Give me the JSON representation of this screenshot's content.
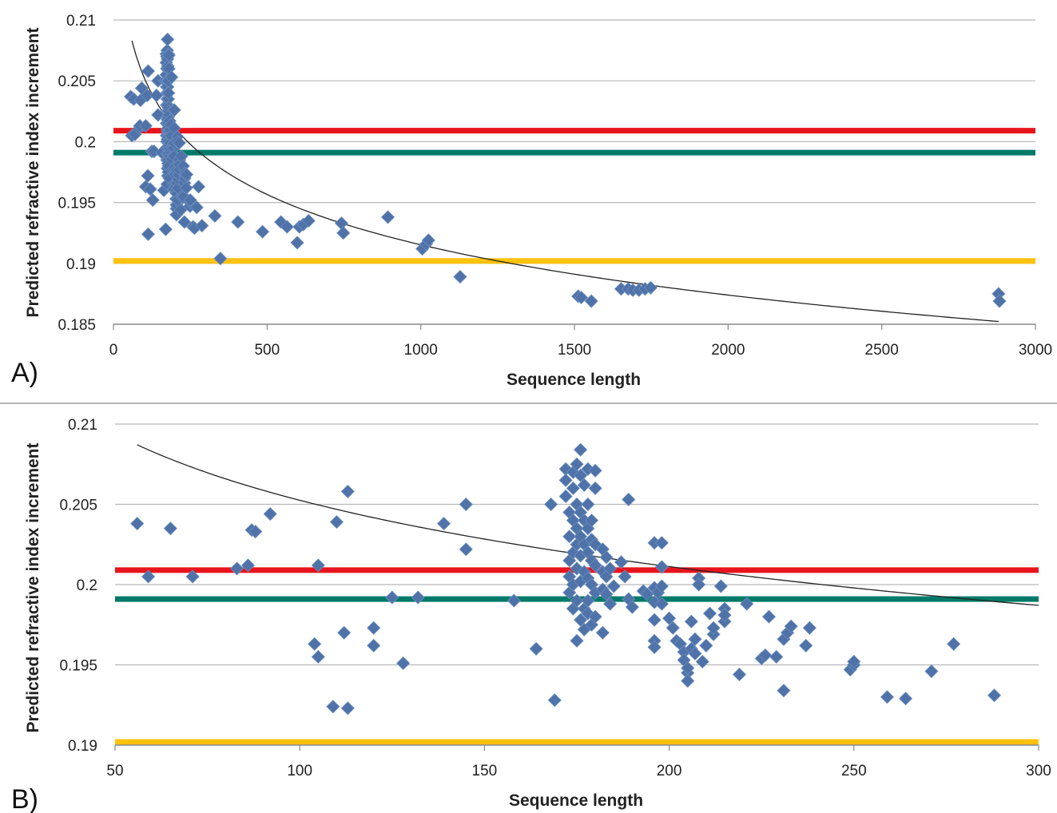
{
  "chart_data": [
    {
      "type": "scatter",
      "panel_label": "A)",
      "xlabel": "Sequence length",
      "ylabel": "Predicted refractive index increment",
      "xlim": [
        0,
        3000
      ],
      "ylim": [
        0.185,
        0.21
      ],
      "xticks": [
        0,
        500,
        1000,
        1500,
        2000,
        2500,
        3000
      ],
      "xtick_labels": [
        "0",
        "500",
        "1000",
        "1500",
        "2000",
        "2500",
        "3000"
      ],
      "yticks": [
        0.185,
        0.19,
        0.195,
        0.2,
        0.205,
        0.21
      ],
      "ytick_labels": [
        "0.185",
        "0.19",
        "0.195",
        "0.2",
        "0.205",
        "0.21"
      ],
      "grid": "horizontal",
      "marker_color": "#4f73a8",
      "reference_lines": [
        {
          "y": 0.2009,
          "color": "#e8141d"
        },
        {
          "y": 0.1991,
          "color": "#007a68"
        },
        {
          "y": 0.1902,
          "color": "#ffc20e"
        }
      ],
      "trendline": {
        "type": "log",
        "x_range": [
          60,
          2880
        ],
        "a": 0.2327,
        "b": -0.00596,
        "color": "#222222"
      },
      "points": [
        [
          56,
          0.2037
        ],
        [
          60,
          0.2005
        ],
        [
          66,
          0.2035
        ],
        [
          70,
          0.2006
        ],
        [
          84,
          0.2011
        ],
        [
          86,
          0.2013
        ],
        [
          88,
          0.2034
        ],
        [
          92,
          0.2044
        ],
        [
          105,
          0.2013
        ],
        [
          105,
          0.1963
        ],
        [
          110,
          0.2038
        ],
        [
          113,
          0.1924
        ],
        [
          113,
          0.2058
        ],
        [
          112,
          0.1972
        ],
        [
          120,
          0.1961
        ],
        [
          125,
          0.1992
        ],
        [
          128,
          0.1952
        ],
        [
          132,
          0.1992
        ],
        [
          140,
          0.2038
        ],
        [
          145,
          0.205
        ],
        [
          145,
          0.2022
        ],
        [
          158,
          0.1991
        ],
        [
          164,
          0.196
        ],
        [
          168,
          0.205
        ],
        [
          170,
          0.1928
        ],
        [
          172,
          0.2072
        ],
        [
          172,
          0.2065
        ],
        [
          172,
          0.2055
        ],
        [
          173,
          0.2045
        ],
        [
          173,
          0.203
        ],
        [
          173,
          0.2015
        ],
        [
          173,
          0.2005
        ],
        [
          173,
          0.1995
        ],
        [
          174,
          0.207
        ],
        [
          174,
          0.206
        ],
        [
          174,
          0.204
        ],
        [
          174,
          0.202
        ],
        [
          174,
          0.2
        ],
        [
          174,
          0.1985
        ],
        [
          175,
          0.2075
        ],
        [
          175,
          0.205
        ],
        [
          175,
          0.2035
        ],
        [
          175,
          0.2025
        ],
        [
          175,
          0.201
        ],
        [
          175,
          0.199
        ],
        [
          175,
          0.1965
        ],
        [
          176,
          0.2084
        ],
        [
          176,
          0.2068
        ],
        [
          176,
          0.2045
        ],
        [
          176,
          0.203
        ],
        [
          176,
          0.2018
        ],
        [
          176,
          0.2002
        ],
        [
          176,
          0.1978
        ],
        [
          177,
          0.2062
        ],
        [
          177,
          0.204
        ],
        [
          177,
          0.2025
        ],
        [
          177,
          0.2008
        ],
        [
          177,
          0.1985
        ],
        [
          177,
          0.1972
        ],
        [
          178,
          0.2072
        ],
        [
          178,
          0.205
        ],
        [
          178,
          0.2035
        ],
        [
          178,
          0.202
        ],
        [
          178,
          0.2004
        ],
        [
          178,
          0.199
        ],
        [
          178,
          0.1982
        ],
        [
          179,
          0.204
        ],
        [
          179,
          0.2028
        ],
        [
          179,
          0.2015
        ],
        [
          179,
          0.2
        ],
        [
          179,
          0.1975
        ],
        [
          180,
          0.2071
        ],
        [
          180,
          0.206
        ],
        [
          180,
          0.2025
        ],
        [
          180,
          0.2012
        ],
        [
          180,
          0.1995
        ],
        [
          180,
          0.198
        ],
        [
          182,
          0.2022
        ],
        [
          182,
          0.2008
        ],
        [
          182,
          0.1997
        ],
        [
          182,
          0.197
        ],
        [
          183,
          0.2017
        ],
        [
          183,
          0.2005
        ],
        [
          183,
          0.1994
        ],
        [
          184,
          0.201
        ],
        [
          184,
          0.1988
        ],
        [
          185,
          0.1999
        ],
        [
          187,
          0.2014
        ],
        [
          188,
          0.2005
        ],
        [
          189,
          0.2053
        ],
        [
          189,
          0.1991
        ],
        [
          190,
          0.1986
        ],
        [
          193,
          0.1996
        ],
        [
          194,
          0.1994
        ],
        [
          196,
          0.2026
        ],
        [
          196,
          0.1998
        ],
        [
          196,
          0.1989
        ],
        [
          196,
          0.1978
        ],
        [
          196,
          0.1965
        ],
        [
          196,
          0.1961
        ],
        [
          197,
          0.1995
        ],
        [
          198,
          0.2026
        ],
        [
          198,
          0.2011
        ],
        [
          198,
          0.1999
        ],
        [
          198,
          0.1988
        ],
        [
          200,
          0.1979
        ],
        [
          201,
          0.1973
        ],
        [
          202,
          0.1965
        ],
        [
          203,
          0.1963
        ],
        [
          204,
          0.1958
        ],
        [
          204,
          0.1953
        ],
        [
          205,
          0.1945
        ],
        [
          205,
          0.194
        ],
        [
          205,
          0.1948
        ],
        [
          206,
          0.196
        ],
        [
          206,
          0.1977
        ],
        [
          207,
          0.1966
        ],
        [
          207,
          0.1957
        ],
        [
          208,
          0.2004
        ],
        [
          208,
          0.2
        ],
        [
          209,
          0.1952
        ],
        [
          210,
          0.1962
        ],
        [
          211,
          0.1982
        ],
        [
          212,
          0.1969
        ],
        [
          212,
          0.1973
        ],
        [
          214,
          0.1999
        ],
        [
          215,
          0.1985
        ],
        [
          215,
          0.1977
        ],
        [
          215,
          0.1981
        ],
        [
          219,
          0.1944
        ],
        [
          221,
          0.1988
        ],
        [
          225,
          0.1954
        ],
        [
          226,
          0.1956
        ],
        [
          227,
          0.198
        ],
        [
          229,
          0.1955
        ],
        [
          231,
          0.1934
        ],
        [
          231,
          0.1966
        ],
        [
          232,
          0.197
        ],
        [
          233,
          0.1974
        ],
        [
          237,
          0.1962
        ],
        [
          238,
          0.1973
        ],
        [
          249,
          0.1947
        ],
        [
          250,
          0.195
        ],
        [
          250,
          0.1952
        ],
        [
          259,
          0.193
        ],
        [
          264,
          0.1929
        ],
        [
          271,
          0.1946
        ],
        [
          277,
          0.1963
        ],
        [
          288,
          0.1931
        ],
        [
          348,
          0.1904
        ],
        [
          330,
          0.1939
        ],
        [
          405,
          0.1934
        ],
        [
          485,
          0.1926
        ],
        [
          545,
          0.1934
        ],
        [
          565,
          0.193
        ],
        [
          598,
          0.1917
        ],
        [
          605,
          0.193
        ],
        [
          618,
          0.1932
        ],
        [
          635,
          0.1935
        ],
        [
          742,
          0.1933
        ],
        [
          748,
          0.1925
        ],
        [
          893,
          0.1938
        ],
        [
          1005,
          0.1912
        ],
        [
          1018,
          0.1916
        ],
        [
          1025,
          0.1919
        ],
        [
          1128,
          0.1889
        ],
        [
          1512,
          0.1873
        ],
        [
          1522,
          0.1872
        ],
        [
          1555,
          0.1869
        ],
        [
          1652,
          0.1879
        ],
        [
          1675,
          0.1879
        ],
        [
          1690,
          0.1878
        ],
        [
          1710,
          0.1878
        ],
        [
          1730,
          0.1879
        ],
        [
          1748,
          0.188
        ],
        [
          2880,
          0.1875
        ],
        [
          2883,
          0.1869
        ]
      ]
    },
    {
      "type": "scatter",
      "panel_label": "B)",
      "xlabel": "Sequence length",
      "ylabel": "Predicted refractive index increment",
      "xlim": [
        50,
        300
      ],
      "ylim": [
        0.19,
        0.21
      ],
      "xticks": [
        50,
        100,
        150,
        200,
        250,
        300
      ],
      "xtick_labels": [
        "50",
        "100",
        "150",
        "200",
        "250",
        "300"
      ],
      "yticks": [
        0.19,
        0.195,
        0.2,
        0.205,
        0.21
      ],
      "ytick_labels": [
        "0.19",
        "0.195",
        "0.2",
        "0.205",
        "0.21"
      ],
      "grid": "horizontal",
      "marker_color": "#4f73a8",
      "reference_lines": [
        {
          "y": 0.2009,
          "color": "#e8141d"
        },
        {
          "y": 0.1991,
          "color": "#007a68"
        },
        {
          "y": 0.1902,
          "color": "#ffc20e"
        }
      ],
      "trendline": {
        "type": "log",
        "x_range": [
          56,
          300
        ],
        "a": 0.2327,
        "b": -0.00596,
        "color": "#222222"
      },
      "points": [
        [
          56,
          0.2038
        ],
        [
          59,
          0.2005
        ],
        [
          65,
          0.2035
        ],
        [
          71,
          0.2005
        ],
        [
          83,
          0.201
        ],
        [
          86,
          0.2012
        ],
        [
          87,
          0.2034
        ],
        [
          88,
          0.2033
        ],
        [
          92,
          0.2044
        ],
        [
          104,
          0.1963
        ],
        [
          105,
          0.2012
        ],
        [
          105,
          0.1955
        ],
        [
          109,
          0.1924
        ],
        [
          110,
          0.2039
        ],
        [
          112,
          0.197
        ],
        [
          113,
          0.1923
        ],
        [
          113,
          0.2058
        ],
        [
          120,
          0.1973
        ],
        [
          120,
          0.1962
        ],
        [
          125,
          0.1992
        ],
        [
          128,
          0.1951
        ],
        [
          132,
          0.1992
        ],
        [
          139,
          0.2038
        ],
        [
          145,
          0.205
        ],
        [
          145,
          0.2022
        ],
        [
          158,
          0.199
        ],
        [
          164,
          0.196
        ],
        [
          168,
          0.205
        ],
        [
          169,
          0.1928
        ],
        [
          172,
          0.2072
        ],
        [
          172,
          0.2065
        ],
        [
          172,
          0.2055
        ],
        [
          173,
          0.2045
        ],
        [
          173,
          0.203
        ],
        [
          173,
          0.2015
        ],
        [
          173,
          0.2005
        ],
        [
          173,
          0.1995
        ],
        [
          174,
          0.207
        ],
        [
          174,
          0.206
        ],
        [
          174,
          0.204
        ],
        [
          174,
          0.202
        ],
        [
          174,
          0.2
        ],
        [
          174,
          0.1985
        ],
        [
          175,
          0.2075
        ],
        [
          175,
          0.205
        ],
        [
          175,
          0.2035
        ],
        [
          175,
          0.2025
        ],
        [
          175,
          0.201
        ],
        [
          175,
          0.199
        ],
        [
          175,
          0.1965
        ],
        [
          176,
          0.2084
        ],
        [
          176,
          0.2068
        ],
        [
          176,
          0.2045
        ],
        [
          176,
          0.203
        ],
        [
          176,
          0.2018
        ],
        [
          176,
          0.2002
        ],
        [
          176,
          0.1978
        ],
        [
          177,
          0.2062
        ],
        [
          177,
          0.204
        ],
        [
          177,
          0.2025
        ],
        [
          177,
          0.2008
        ],
        [
          177,
          0.1985
        ],
        [
          177,
          0.1972
        ],
        [
          178,
          0.2072
        ],
        [
          178,
          0.205
        ],
        [
          178,
          0.2035
        ],
        [
          178,
          0.202
        ],
        [
          178,
          0.2004
        ],
        [
          178,
          0.199
        ],
        [
          178,
          0.1982
        ],
        [
          179,
          0.204
        ],
        [
          179,
          0.2028
        ],
        [
          179,
          0.2015
        ],
        [
          179,
          0.2
        ],
        [
          179,
          0.1975
        ],
        [
          180,
          0.2071
        ],
        [
          180,
          0.206
        ],
        [
          180,
          0.2025
        ],
        [
          180,
          0.2012
        ],
        [
          180,
          0.1995
        ],
        [
          180,
          0.198
        ],
        [
          182,
          0.2022
        ],
        [
          182,
          0.2008
        ],
        [
          182,
          0.1997
        ],
        [
          182,
          0.197
        ],
        [
          183,
          0.2017
        ],
        [
          183,
          0.2005
        ],
        [
          183,
          0.1994
        ],
        [
          184,
          0.201
        ],
        [
          184,
          0.1988
        ],
        [
          185,
          0.1999
        ],
        [
          187,
          0.2014
        ],
        [
          188,
          0.2005
        ],
        [
          189,
          0.2053
        ],
        [
          189,
          0.1991
        ],
        [
          190,
          0.1986
        ],
        [
          193,
          0.1996
        ],
        [
          194,
          0.1994
        ],
        [
          196,
          0.2026
        ],
        [
          196,
          0.1998
        ],
        [
          196,
          0.1989
        ],
        [
          196,
          0.1978
        ],
        [
          196,
          0.1965
        ],
        [
          196,
          0.1961
        ],
        [
          197,
          0.1995
        ],
        [
          198,
          0.2026
        ],
        [
          198,
          0.2011
        ],
        [
          198,
          0.1999
        ],
        [
          198,
          0.1988
        ],
        [
          200,
          0.1979
        ],
        [
          201,
          0.1973
        ],
        [
          202,
          0.1965
        ],
        [
          203,
          0.1963
        ],
        [
          204,
          0.1958
        ],
        [
          204,
          0.1953
        ],
        [
          205,
          0.1945
        ],
        [
          205,
          0.194
        ],
        [
          205,
          0.1948
        ],
        [
          206,
          0.196
        ],
        [
          206,
          0.1977
        ],
        [
          207,
          0.1966
        ],
        [
          207,
          0.1957
        ],
        [
          208,
          0.2004
        ],
        [
          208,
          0.2
        ],
        [
          209,
          0.1952
        ],
        [
          210,
          0.1962
        ],
        [
          211,
          0.1982
        ],
        [
          212,
          0.1969
        ],
        [
          212,
          0.1973
        ],
        [
          214,
          0.1999
        ],
        [
          215,
          0.1985
        ],
        [
          215,
          0.1977
        ],
        [
          215,
          0.1981
        ],
        [
          219,
          0.1944
        ],
        [
          221,
          0.1988
        ],
        [
          225,
          0.1954
        ],
        [
          226,
          0.1956
        ],
        [
          227,
          0.198
        ],
        [
          229,
          0.1955
        ],
        [
          231,
          0.1934
        ],
        [
          231,
          0.1966
        ],
        [
          232,
          0.197
        ],
        [
          233,
          0.1974
        ],
        [
          237,
          0.1962
        ],
        [
          238,
          0.1973
        ],
        [
          249,
          0.1947
        ],
        [
          250,
          0.195
        ],
        [
          250,
          0.1952
        ],
        [
          259,
          0.193
        ],
        [
          264,
          0.1929
        ],
        [
          271,
          0.1946
        ],
        [
          277,
          0.1963
        ],
        [
          288,
          0.1931
        ]
      ]
    }
  ]
}
